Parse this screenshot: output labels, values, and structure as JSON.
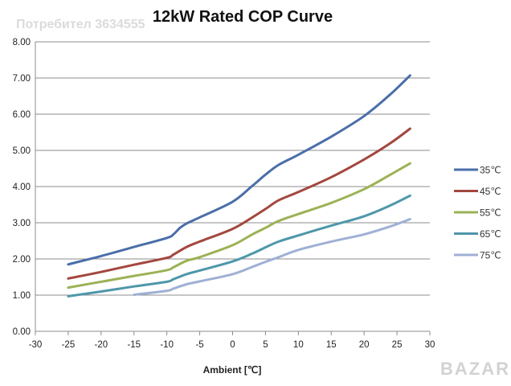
{
  "watermark": {
    "text": "Потребител 3634555",
    "logo": "BAZAR"
  },
  "colors": {
    "grid": "#8c8c8c",
    "axis": "#8c8c8c"
  },
  "chart_data": {
    "type": "line",
    "title": "12kW Rated COP Curve",
    "xlabel": "Ambient [℃]",
    "ylabel": "",
    "xlim": [
      -30,
      30
    ],
    "ylim": [
      0,
      8
    ],
    "xticks": [
      "-30",
      "-25",
      "-20",
      "-15",
      "-10",
      "-5",
      "0",
      "5",
      "10",
      "15",
      "20",
      "25",
      "30"
    ],
    "yticks": [
      "0.00",
      "1.00",
      "2.00",
      "3.00",
      "4.00",
      "5.00",
      "6.00",
      "7.00",
      "8.00"
    ],
    "grid": "horizontal",
    "legend_position": "right",
    "series": [
      {
        "name": "35℃",
        "color": "#4a6ea9",
        "points": [
          [
            -25,
            1.85
          ],
          [
            -20,
            2.08
          ],
          [
            -15,
            2.33
          ],
          [
            -10,
            2.58
          ],
          [
            -9,
            2.68
          ],
          [
            -8,
            2.86
          ],
          [
            -7,
            2.98
          ],
          [
            -5,
            3.15
          ],
          [
            0,
            3.58
          ],
          [
            3,
            4.02
          ],
          [
            5,
            4.33
          ],
          [
            7,
            4.6
          ],
          [
            10,
            4.88
          ],
          [
            15,
            5.38
          ],
          [
            20,
            5.95
          ],
          [
            24,
            6.55
          ],
          [
            27,
            7.07
          ]
        ]
      },
      {
        "name": "45℃",
        "color": "#a3473f",
        "points": [
          [
            -25,
            1.46
          ],
          [
            -20,
            1.64
          ],
          [
            -15,
            1.84
          ],
          [
            -10,
            2.03
          ],
          [
            -9,
            2.12
          ],
          [
            -7,
            2.33
          ],
          [
            -5,
            2.48
          ],
          [
            0,
            2.83
          ],
          [
            3,
            3.15
          ],
          [
            5,
            3.38
          ],
          [
            7,
            3.62
          ],
          [
            10,
            3.85
          ],
          [
            15,
            4.26
          ],
          [
            20,
            4.75
          ],
          [
            24,
            5.2
          ],
          [
            27,
            5.6
          ]
        ]
      },
      {
        "name": "55℃",
        "color": "#9bb255",
        "points": [
          [
            -25,
            1.21
          ],
          [
            -20,
            1.37
          ],
          [
            -15,
            1.53
          ],
          [
            -10,
            1.69
          ],
          [
            -9,
            1.77
          ],
          [
            -7,
            1.95
          ],
          [
            -5,
            2.05
          ],
          [
            0,
            2.38
          ],
          [
            3,
            2.68
          ],
          [
            5,
            2.86
          ],
          [
            7,
            3.05
          ],
          [
            10,
            3.24
          ],
          [
            15,
            3.55
          ],
          [
            20,
            3.93
          ],
          [
            24,
            4.33
          ],
          [
            27,
            4.64
          ]
        ]
      },
      {
        "name": "65℃",
        "color": "#4e97a9",
        "points": [
          [
            -25,
            0.97
          ],
          [
            -20,
            1.1
          ],
          [
            -15,
            1.24
          ],
          [
            -10,
            1.37
          ],
          [
            -9,
            1.44
          ],
          [
            -7,
            1.58
          ],
          [
            -5,
            1.68
          ],
          [
            0,
            1.93
          ],
          [
            3,
            2.15
          ],
          [
            5,
            2.32
          ],
          [
            7,
            2.48
          ],
          [
            10,
            2.65
          ],
          [
            15,
            2.92
          ],
          [
            20,
            3.18
          ],
          [
            24,
            3.48
          ],
          [
            27,
            3.75
          ]
        ]
      },
      {
        "name": "75℃",
        "color": "#9fb0d5",
        "points": [
          [
            -15,
            1.01
          ],
          [
            -10,
            1.12
          ],
          [
            -9,
            1.18
          ],
          [
            -7,
            1.3
          ],
          [
            -5,
            1.38
          ],
          [
            0,
            1.58
          ],
          [
            3,
            1.78
          ],
          [
            5,
            1.92
          ],
          [
            7,
            2.05
          ],
          [
            10,
            2.25
          ],
          [
            15,
            2.48
          ],
          [
            20,
            2.68
          ],
          [
            24,
            2.9
          ],
          [
            27,
            3.1
          ]
        ]
      }
    ]
  }
}
